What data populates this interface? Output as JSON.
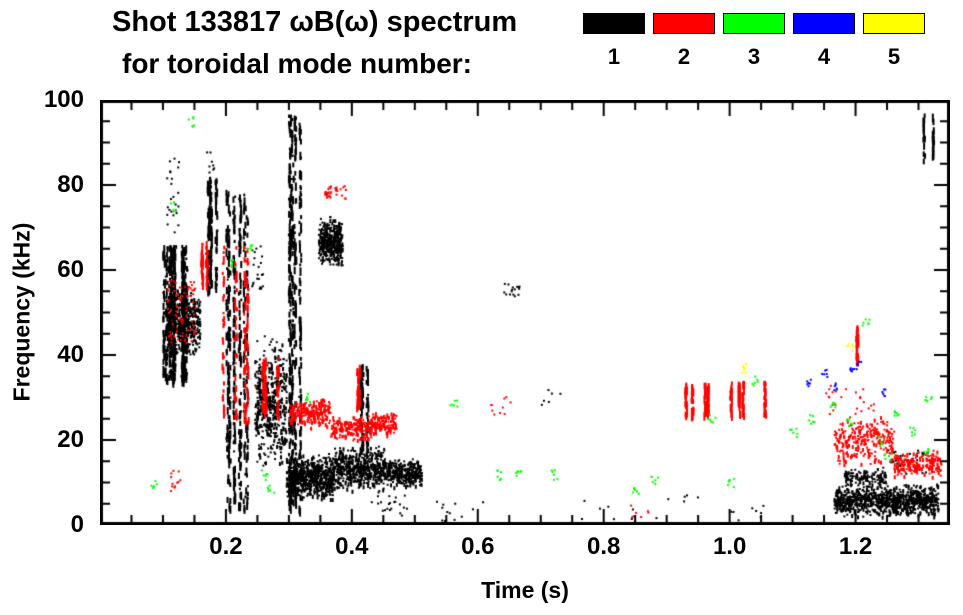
{
  "header": {
    "title_line1": "Shot 133817 ωB(ω) spectrum",
    "title_line2": "for toroidal mode number:"
  },
  "legend": {
    "items": [
      {
        "label": "1",
        "color": "#000000"
      },
      {
        "label": "2",
        "color": "#ff0000"
      },
      {
        "label": "3",
        "color": "#00ff00"
      },
      {
        "label": "4",
        "color": "#0000ff"
      },
      {
        "label": "5",
        "color": "#ffff00"
      }
    ]
  },
  "chart_data": {
    "type": "scatter",
    "title": "Shot 133817 ωB(ω) spectrum for toroidal mode number",
    "xlabel": "Time (s)",
    "ylabel": "Frequency (kHz)",
    "xlim": [
      0.0,
      1.35
    ],
    "ylim": [
      0,
      100
    ],
    "grid": false,
    "legend_position": "top",
    "xticks": {
      "values": [
        0.2,
        0.4,
        0.6,
        0.8,
        1.0,
        1.2
      ],
      "labels": [
        "0.2",
        "0.4",
        "0.6",
        "0.8",
        "1.0",
        "1.2"
      ],
      "minor_step": 0.05
    },
    "yticks": {
      "values": [
        0,
        20,
        40,
        60,
        80,
        100
      ],
      "labels": [
        "0",
        "20",
        "40",
        "60",
        "80",
        "100"
      ],
      "minor_step": 5
    },
    "series": [
      {
        "name": "n=1",
        "mode": 1,
        "color": "#000000",
        "clusters": [
          {
            "shape": "vstreaks",
            "t": [
              0.095,
              0.165
            ],
            "f": [
              34,
              66
            ],
            "streaks": 14,
            "n": 480
          },
          {
            "shape": "blob",
            "t": [
              0.105,
              0.158
            ],
            "f": [
              39,
              56
            ],
            "n": 420
          },
          {
            "shape": "dots",
            "t": [
              0.105,
              0.125
            ],
            "f": [
              64,
              87
            ],
            "n": 28
          },
          {
            "shape": "vstreaks",
            "t": [
              0.165,
              0.19
            ],
            "f": [
              55,
              82
            ],
            "streaks": 5,
            "n": 150
          },
          {
            "shape": "dots",
            "t": [
              0.165,
              0.18
            ],
            "f": [
              82,
              88
            ],
            "n": 8
          },
          {
            "shape": "vstreaks",
            "t": [
              0.19,
              0.235
            ],
            "f": [
              3,
              79
            ],
            "streaks": 9,
            "n": 400
          },
          {
            "shape": "dots",
            "t": [
              0.24,
              0.258
            ],
            "f": [
              55,
              66
            ],
            "n": 22
          },
          {
            "shape": "blob",
            "t": [
              0.245,
              0.295
            ],
            "f": [
              13,
              45
            ],
            "n": 480
          },
          {
            "shape": "vstreaks",
            "t": [
              0.298,
              0.325
            ],
            "f": [
              4,
              97
            ],
            "streaks": 5,
            "n": 400
          },
          {
            "shape": "blob",
            "t": [
              0.346,
              0.384
            ],
            "f": [
              61,
              73
            ],
            "n": 360
          },
          {
            "shape": "blob",
            "t": [
              0.295,
              0.37
            ],
            "f": [
              6,
              17
            ],
            "n": 640
          },
          {
            "shape": "blob",
            "t": [
              0.37,
              0.45
            ],
            "f": [
              8,
              19
            ],
            "n": 500
          },
          {
            "shape": "blob",
            "t": [
              0.45,
              0.51
            ],
            "f": [
              9,
              16
            ],
            "n": 300
          },
          {
            "shape": "vstreaks",
            "t": [
              0.4,
              0.425
            ],
            "f": [
              18,
              38
            ],
            "streaks": 3,
            "n": 90
          },
          {
            "shape": "dots",
            "t": [
              0.43,
              0.5
            ],
            "f": [
              2,
              8
            ],
            "n": 22
          },
          {
            "shape": "dots",
            "t": [
              0.52,
              0.61
            ],
            "f": [
              1,
              6
            ],
            "n": 12
          },
          {
            "shape": "dots",
            "t": [
              0.64,
              0.665
            ],
            "f": [
              54,
              57
            ],
            "n": 16
          },
          {
            "shape": "dots",
            "t": [
              0.7,
              0.73
            ],
            "f": [
              28,
              32
            ],
            "n": 6
          },
          {
            "shape": "dots",
            "t": [
              0.74,
              0.95
            ],
            "f": [
              1,
              8
            ],
            "n": 14
          },
          {
            "shape": "blob",
            "t": [
              1.165,
              1.33
            ],
            "f": [
              2,
              10
            ],
            "n": 850
          },
          {
            "shape": "blob",
            "t": [
              1.18,
              1.25
            ],
            "f": [
              9,
              14
            ],
            "n": 120
          },
          {
            "shape": "dots",
            "t": [
              1.25,
              1.315
            ],
            "f": [
              12,
              18
            ],
            "n": 35
          },
          {
            "shape": "vstreaks",
            "t": [
              1.3,
              1.325
            ],
            "f": [
              86,
              97
            ],
            "streaks": 2,
            "n": 40
          },
          {
            "shape": "dots",
            "t": [
              1.0,
              1.1
            ],
            "f": [
              1,
              5
            ],
            "n": 8
          }
        ]
      },
      {
        "name": "n=2",
        "mode": 2,
        "color": "#ff0000",
        "clusters": [
          {
            "shape": "dots",
            "t": [
              0.105,
              0.15
            ],
            "f": [
              43,
              58
            ],
            "n": 80
          },
          {
            "shape": "vstreaks",
            "t": [
              0.155,
              0.175
            ],
            "f": [
              57,
              67
            ],
            "streaks": 2,
            "n": 50
          },
          {
            "shape": "vstreaks",
            "t": [
              0.19,
              0.235
            ],
            "f": [
              24,
              66
            ],
            "streaks": 4,
            "n": 120
          },
          {
            "shape": "dots",
            "t": [
              0.11,
              0.13
            ],
            "f": [
              8,
              14
            ],
            "n": 12
          },
          {
            "shape": "vstreaks",
            "t": [
              0.25,
              0.29
            ],
            "f": [
              26,
              40
            ],
            "streaks": 4,
            "n": 80
          },
          {
            "shape": "blob",
            "t": [
              0.3,
              0.365
            ],
            "f": [
              23,
              30
            ],
            "n": 250
          },
          {
            "shape": "blob",
            "t": [
              0.365,
              0.43
            ],
            "f": [
              20,
              26
            ],
            "n": 210
          },
          {
            "shape": "blob",
            "t": [
              0.43,
              0.47
            ],
            "f": [
              21,
              27
            ],
            "n": 120
          },
          {
            "shape": "vstreaks",
            "t": [
              0.4,
              0.42
            ],
            "f": [
              28,
              38
            ],
            "streaks": 2,
            "n": 45
          },
          {
            "shape": "dots",
            "t": [
              0.355,
              0.39
            ],
            "f": [
              77,
              80
            ],
            "n": 35
          },
          {
            "shape": "dots",
            "t": [
              0.62,
              0.655
            ],
            "f": [
              26,
              31
            ],
            "n": 10
          },
          {
            "shape": "dots",
            "t": [
              0.84,
              0.87
            ],
            "f": [
              1,
              5
            ],
            "n": 7
          },
          {
            "shape": "vstreaks",
            "t": [
              0.9,
              1.145
            ],
            "f": [
              26,
              34
            ],
            "streaks": 8,
            "n": 180
          },
          {
            "shape": "blob",
            "t": [
              1.165,
              1.26
            ],
            "f": [
              14,
              26
            ],
            "n": 250
          },
          {
            "shape": "blob",
            "t": [
              1.26,
              1.335
            ],
            "f": [
              11,
              18
            ],
            "n": 190
          },
          {
            "shape": "vstreaks",
            "t": [
              1.19,
              1.215
            ],
            "f": [
              38,
              47
            ],
            "streaks": 2,
            "n": 40
          },
          {
            "shape": "dots",
            "t": [
              1.15,
              1.23
            ],
            "f": [
              26,
              33
            ],
            "n": 25
          }
        ]
      },
      {
        "name": "n=3",
        "mode": 3,
        "color": "#00ff00",
        "clusters": [
          {
            "shape": "specks",
            "n_per": 6,
            "dt": 0.006,
            "df": 1.2,
            "pts": [
              [
                0.085,
                10
              ],
              [
                0.115,
                75
              ],
              [
                0.145,
                95
              ],
              [
                0.21,
                62
              ],
              [
                0.235,
                65
              ],
              [
                0.26,
                12
              ],
              [
                0.27,
                9
              ],
              [
                0.33,
                30
              ],
              [
                0.56,
                29
              ],
              [
                0.63,
                12
              ],
              [
                0.665,
                13
              ],
              [
                0.72,
                12
              ],
              [
                0.85,
                8
              ],
              [
                0.88,
                11
              ],
              [
                0.97,
                25
              ],
              [
                1.0,
                10
              ],
              [
                1.04,
                34
              ],
              [
                1.1,
                22
              ],
              [
                1.13,
                25
              ],
              [
                1.165,
                28
              ],
              [
                1.19,
                24
              ],
              [
                1.215,
                48
              ],
              [
                1.24,
                20
              ],
              [
                1.25,
                16
              ],
              [
                1.265,
                26
              ],
              [
                1.29,
                22
              ],
              [
                1.31,
                18
              ],
              [
                1.315,
                30
              ]
            ]
          }
        ]
      },
      {
        "name": "n=4",
        "mode": 4,
        "color": "#0000ff",
        "clusters": [
          {
            "shape": "specks",
            "n_per": 6,
            "dt": 0.005,
            "df": 1.2,
            "pts": [
              [
                1.125,
                34
              ],
              [
                1.15,
                36
              ],
              [
                1.165,
                33
              ],
              [
                1.195,
                36
              ],
              [
                1.205,
                38
              ],
              [
                1.245,
                31
              ]
            ]
          }
        ]
      },
      {
        "name": "n=5",
        "mode": 5,
        "color": "#ffff00",
        "clusters": [
          {
            "shape": "specks",
            "n_per": 7,
            "dt": 0.005,
            "df": 1.2,
            "pts": [
              [
                1.02,
                37
              ],
              [
                1.19,
                42
              ]
            ]
          }
        ]
      }
    ]
  }
}
